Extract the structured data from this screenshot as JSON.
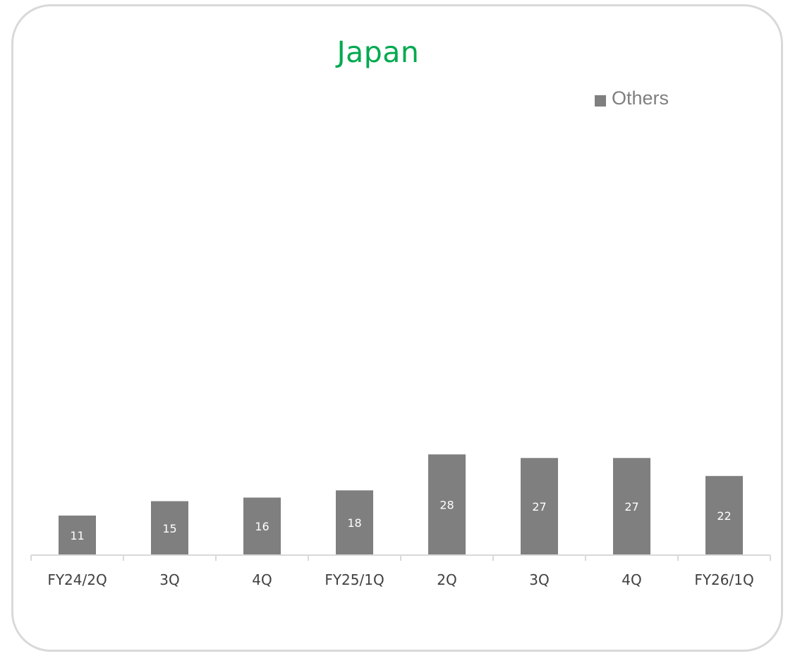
{
  "chart_data": {
    "type": "bar",
    "title": "Japan",
    "categories": [
      "FY24/2Q",
      "3Q",
      "4Q",
      "FY25/1Q",
      "2Q",
      "3Q",
      "4Q",
      "FY26/1Q"
    ],
    "series": [
      {
        "name": "Others",
        "values": [
          11,
          15,
          16,
          18,
          28,
          27,
          27,
          22
        ]
      }
    ],
    "legend_position": "top-right",
    "data_labels": true,
    "grid": false,
    "colors": {
      "title": "#00a94f",
      "bar": "#7f7f7f",
      "bar_label": "#ffffff",
      "axis": "#d9d9d9",
      "tick_label": "#404040",
      "legend_text": "#7f7f7f"
    }
  }
}
